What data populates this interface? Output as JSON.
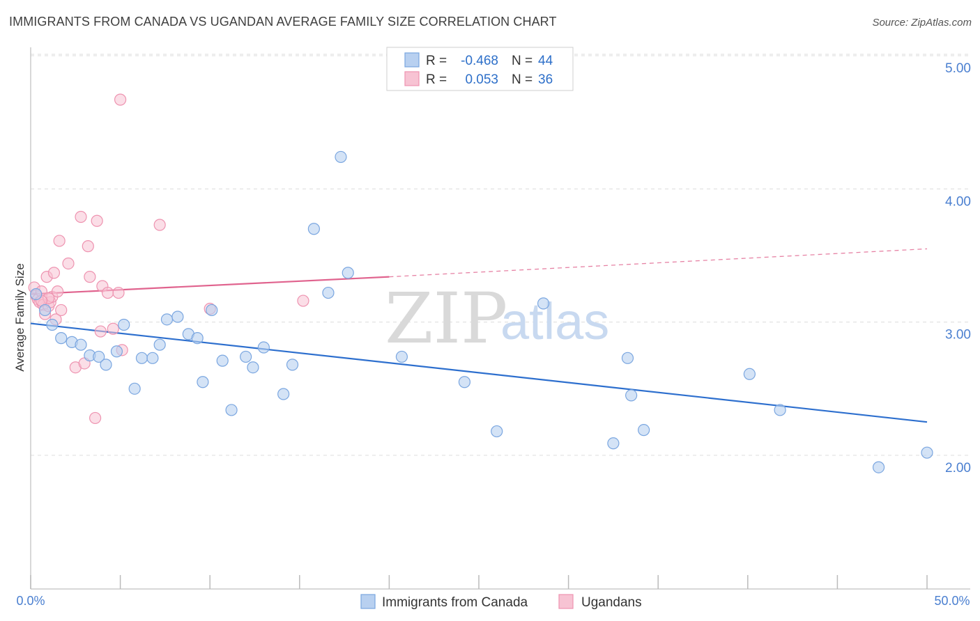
{
  "title": "IMMIGRANTS FROM CANADA VS UGANDAN AVERAGE FAMILY SIZE CORRELATION CHART",
  "source": "Source: ZipAtlas.com",
  "colors": {
    "canada_fill": "#b8d0f0",
    "canada_stroke": "#7aa6e0",
    "canada_line": "#2d6fce",
    "uganda_fill": "#f7c3d3",
    "uganda_stroke": "#ee93b0",
    "uganda_line": "#e0638e"
  },
  "legend": {
    "rows": [
      {
        "r_label": "R =",
        "r_value": "-0.468",
        "n_label": "N =",
        "n_value": "44"
      },
      {
        "r_label": "R =",
        "r_value": "0.053",
        "n_label": "N =",
        "n_value": "36"
      }
    ]
  },
  "watermark": {
    "zip": "ZIP",
    "atlas": "atlas"
  },
  "chart_data": {
    "type": "scatter",
    "title": "IMMIGRANTS FROM CANADA VS UGANDAN AVERAGE FAMILY SIZE CORRELATION CHART",
    "xlabel": "",
    "ylabel": "Average Family Size",
    "xlim": [
      0,
      50
    ],
    "ylim": [
      1.0,
      5.15
    ],
    "x_tick_labels": [
      "0.0%",
      "50.0%"
    ],
    "y_ticks": [
      2.0,
      3.0,
      4.0,
      5.0
    ],
    "y_tick_labels": [
      "2.00",
      "3.00",
      "4.00",
      "5.00"
    ],
    "grid": true,
    "legend_position": "top-center",
    "series": [
      {
        "name": "Immigrants from Canada",
        "points": [
          [
            0.3,
            3.21
          ],
          [
            0.8,
            3.09
          ],
          [
            1.2,
            2.98
          ],
          [
            1.7,
            2.88
          ],
          [
            2.3,
            2.85
          ],
          [
            2.8,
            2.83
          ],
          [
            3.3,
            2.75
          ],
          [
            3.8,
            2.74
          ],
          [
            4.2,
            2.68
          ],
          [
            4.8,
            2.78
          ],
          [
            5.2,
            2.98
          ],
          [
            5.8,
            2.5
          ],
          [
            6.2,
            2.73
          ],
          [
            6.8,
            2.73
          ],
          [
            7.2,
            2.83
          ],
          [
            7.6,
            3.02
          ],
          [
            8.2,
            3.04
          ],
          [
            8.8,
            2.91
          ],
          [
            9.3,
            2.88
          ],
          [
            9.6,
            2.55
          ],
          [
            10.1,
            3.09
          ],
          [
            10.7,
            2.71
          ],
          [
            11.2,
            2.34
          ],
          [
            12.0,
            2.74
          ],
          [
            12.4,
            2.66
          ],
          [
            13.0,
            2.81
          ],
          [
            14.1,
            2.46
          ],
          [
            14.6,
            2.68
          ],
          [
            15.8,
            3.7
          ],
          [
            16.6,
            3.22
          ],
          [
            17.3,
            4.24
          ],
          [
            17.7,
            3.37
          ],
          [
            20.7,
            2.74
          ],
          [
            24.2,
            2.55
          ],
          [
            26.0,
            2.18
          ],
          [
            28.6,
            3.14
          ],
          [
            32.5,
            2.09
          ],
          [
            33.3,
            2.73
          ],
          [
            33.5,
            2.45
          ],
          [
            34.2,
            2.19
          ],
          [
            40.1,
            2.61
          ],
          [
            41.8,
            2.34
          ],
          [
            47.3,
            1.91
          ],
          [
            50.0,
            2.02
          ]
        ],
        "trend": {
          "x": [
            0,
            50
          ],
          "y": [
            2.99,
            2.25
          ]
        }
      },
      {
        "name": "Ugandans",
        "points": [
          [
            0.2,
            3.26
          ],
          [
            0.3,
            3.2
          ],
          [
            0.4,
            3.17
          ],
          [
            0.5,
            3.15
          ],
          [
            0.6,
            3.23
          ],
          [
            0.7,
            3.13
          ],
          [
            0.8,
            3.06
          ],
          [
            0.9,
            3.34
          ],
          [
            1.0,
            3.12
          ],
          [
            1.1,
            3.15
          ],
          [
            1.2,
            3.19
          ],
          [
            1.3,
            3.37
          ],
          [
            1.4,
            3.02
          ],
          [
            1.5,
            3.23
          ],
          [
            1.6,
            3.61
          ],
          [
            1.7,
            3.09
          ],
          [
            2.1,
            3.44
          ],
          [
            2.5,
            2.66
          ],
          [
            2.8,
            3.79
          ],
          [
            3.0,
            2.69
          ],
          [
            3.2,
            3.57
          ],
          [
            3.3,
            3.34
          ],
          [
            3.7,
            3.76
          ],
          [
            3.9,
            2.93
          ],
          [
            4.0,
            3.27
          ],
          [
            4.3,
            3.22
          ],
          [
            4.6,
            2.95
          ],
          [
            3.6,
            2.28
          ],
          [
            4.9,
            3.22
          ],
          [
            5.0,
            4.67
          ],
          [
            5.1,
            2.79
          ],
          [
            7.2,
            3.73
          ],
          [
            10.0,
            3.1
          ],
          [
            15.2,
            3.16
          ],
          [
            1.0,
            3.18
          ],
          [
            0.6,
            3.16
          ]
        ],
        "trend": {
          "x": [
            0,
            20
          ],
          "y": [
            3.21,
            3.34
          ]
        },
        "trend_dashed": {
          "x": [
            20,
            50
          ],
          "y": [
            3.34,
            3.55
          ]
        }
      }
    ]
  },
  "bottom_legend": [
    {
      "label": "Immigrants from Canada"
    },
    {
      "label": "Ugandans"
    }
  ]
}
